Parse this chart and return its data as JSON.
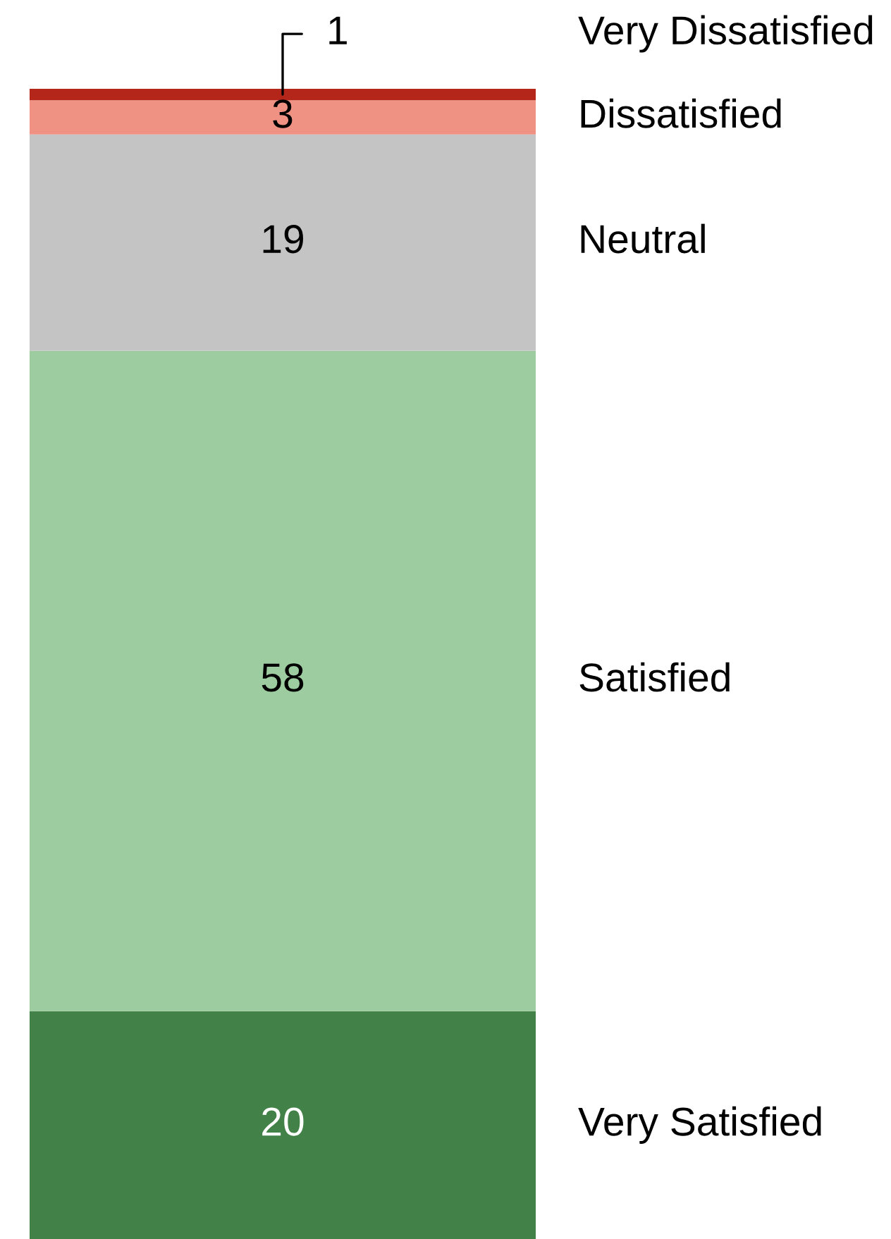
{
  "chart_data": {
    "type": "bar",
    "stacked": true,
    "categories": [
      null
    ],
    "data_labels": true,
    "series": [
      {
        "name": "Very Satisfied",
        "color": "#428148",
        "values": [
          20
        ]
      },
      {
        "name": "Satisfied",
        "color": "#9ccc9f",
        "values": [
          58
        ]
      },
      {
        "name": "Neutral",
        "color": "#c4c4c4",
        "values": [
          19
        ]
      },
      {
        "name": "Dissatisfied",
        "color": "#ef9183",
        "values": [
          3
        ]
      },
      {
        "name": "Very Dissatisfied",
        "color": "#b5261a",
        "values": [
          1
        ]
      }
    ]
  }
}
